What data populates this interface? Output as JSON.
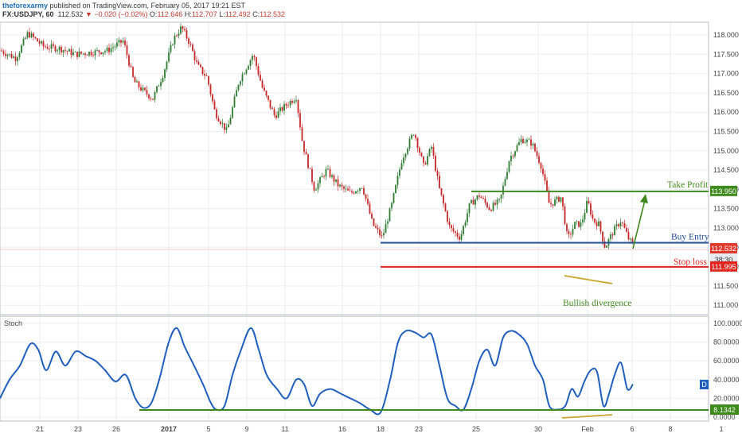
{
  "header": {
    "author": "theforexarmy",
    "published": "published on TradingView.com, February 05, 2017 19:21 EST",
    "symbol": "FX:USDJPY, 60",
    "last": "112.532",
    "change": "▼ −0.020 (−0.02%)",
    "ohlc": {
      "o_label": "O:",
      "o": "112.646",
      "h_label": "H:",
      "h": "112.707",
      "l_label": "L:",
      "l": "112.492",
      "c_label": "C:",
      "c": "112.532"
    }
  },
  "chart_data": [
    {
      "type": "candlestick",
      "symbol": "USDJPY",
      "interval": "60",
      "ylim": [
        110.8,
        118.3
      ],
      "y_ticks": [
        "118.000",
        "117.500",
        "117.000",
        "116.500",
        "116.000",
        "115.500",
        "115.000",
        "114.500",
        "114.000",
        "113.500",
        "113.000",
        "112.500",
        "112.000",
        "111.500",
        "111.000"
      ],
      "x_ticks": [
        "21",
        "23",
        "26",
        "2017",
        "5",
        "9",
        "11",
        "16",
        "18",
        "23",
        "25",
        "30",
        "Feb",
        "6",
        "8",
        "1"
      ],
      "price_path": [
        [
          0,
          117.6
        ],
        [
          20,
          117.4
        ],
        [
          35,
          118.05
        ],
        [
          55,
          117.7
        ],
        [
          75,
          117.65
        ],
        [
          95,
          117.5
        ],
        [
          115,
          117.55
        ],
        [
          135,
          117.6
        ],
        [
          155,
          117.85
        ],
        [
          168,
          116.8
        ],
        [
          180,
          116.55
        ],
        [
          192,
          116.35
        ],
        [
          205,
          117.0
        ],
        [
          218,
          117.9
        ],
        [
          228,
          118.2
        ],
        [
          238,
          117.8
        ],
        [
          248,
          117.2
        ],
        [
          260,
          116.9
        ],
        [
          270,
          116.0
        ],
        [
          285,
          115.5
        ],
        [
          300,
          116.8
        ],
        [
          318,
          117.5
        ],
        [
          330,
          116.6
        ],
        [
          345,
          115.9
        ],
        [
          360,
          116.2
        ],
        [
          372,
          116.4
        ],
        [
          380,
          115.2
        ],
        [
          395,
          114.0
        ],
        [
          410,
          114.5
        ],
        [
          425,
          114.1
        ],
        [
          440,
          113.9
        ],
        [
          455,
          114.1
        ],
        [
          468,
          113.1
        ],
        [
          480,
          112.75
        ],
        [
          492,
          113.6
        ],
        [
          505,
          114.8
        ],
        [
          520,
          115.5
        ],
        [
          532,
          114.6
        ],
        [
          542,
          115.1
        ],
        [
          552,
          114.0
        ],
        [
          565,
          113.0
        ],
        [
          578,
          112.75
        ],
        [
          590,
          113.6
        ],
        [
          602,
          113.85
        ],
        [
          615,
          113.5
        ],
        [
          628,
          113.7
        ],
        [
          640,
          114.8
        ],
        [
          655,
          115.3
        ],
        [
          668,
          115.2
        ],
        [
          680,
          114.6
        ],
        [
          690,
          113.6
        ],
        [
          705,
          113.8
        ],
        [
          713,
          112.7
        ],
        [
          722,
          113.1
        ],
        [
          730,
          113.1
        ],
        [
          738,
          113.7
        ],
        [
          745,
          113.2
        ],
        [
          752,
          113.1
        ],
        [
          760,
          112.5
        ],
        [
          770,
          112.9
        ],
        [
          780,
          113.2
        ],
        [
          790,
          112.7
        ],
        [
          796,
          112.56
        ]
      ],
      "series": [
        {
          "name": "Stoch",
          "values": [
            [
              0,
              20
            ],
            [
              12,
              40
            ],
            [
              25,
              55
            ],
            [
              38,
              78
            ],
            [
              48,
              72
            ],
            [
              58,
              50
            ],
            [
              70,
              70
            ],
            [
              82,
              55
            ],
            [
              95,
              70
            ],
            [
              108,
              65
            ],
            [
              120,
              60
            ],
            [
              132,
              50
            ],
            [
              145,
              38
            ],
            [
              158,
              45
            ],
            [
              170,
              20
            ],
            [
              180,
              10
            ],
            [
              190,
              15
            ],
            [
              200,
              40
            ],
            [
              212,
              80
            ],
            [
              222,
              95
            ],
            [
              232,
              75
            ],
            [
              242,
              58
            ],
            [
              255,
              35
            ],
            [
              265,
              15
            ],
            [
              272,
              8
            ],
            [
              282,
              12
            ],
            [
              292,
              45
            ],
            [
              302,
              70
            ],
            [
              315,
              95
            ],
            [
              325,
              72
            ],
            [
              335,
              45
            ],
            [
              348,
              30
            ],
            [
              360,
              20
            ],
            [
              372,
              40
            ],
            [
              382,
              35
            ],
            [
              392,
              12
            ],
            [
              402,
              25
            ],
            [
              415,
              30
            ],
            [
              428,
              25
            ],
            [
              440,
              20
            ],
            [
              452,
              15
            ],
            [
              465,
              8
            ],
            [
              478,
              5
            ],
            [
              490,
              40
            ],
            [
              500,
              80
            ],
            [
              510,
              92
            ],
            [
              522,
              90
            ],
            [
              532,
              85
            ],
            [
              542,
              88
            ],
            [
              552,
              55
            ],
            [
              562,
              20
            ],
            [
              572,
              12
            ],
            [
              582,
              8
            ],
            [
              592,
              30
            ],
            [
              602,
              60
            ],
            [
              612,
              72
            ],
            [
              622,
              55
            ],
            [
              632,
              85
            ],
            [
              642,
              92
            ],
            [
              652,
              88
            ],
            [
              662,
              78
            ],
            [
              672,
              55
            ],
            [
              682,
              40
            ],
            [
              690,
              12
            ],
            [
              700,
              8
            ],
            [
              710,
              12
            ],
            [
              718,
              30
            ],
            [
              726,
              22
            ],
            [
              734,
              38
            ],
            [
              742,
              50
            ],
            [
              750,
              48
            ],
            [
              758,
              12
            ],
            [
              765,
              25
            ],
            [
              772,
              45
            ],
            [
              780,
              58
            ],
            [
              788,
              30
            ],
            [
              795,
              35
            ]
          ]
        }
      ],
      "stoch_ylim": [
        0,
        100
      ],
      "stoch_ticks": [
        "100.0000",
        "80.0000",
        "60.0000",
        "40.0000",
        "20.0000",
        "0.0000"
      ],
      "stoch_label": "Stoch",
      "levels": {
        "take_profit": {
          "label": "Take Profit",
          "price_label": "113.950",
          "value": 113.95,
          "color": "#3f8a1c",
          "x_start": 592
        },
        "buy_entry": {
          "label": "Buy Entry",
          "value": 112.62,
          "color": "#1f4e99",
          "x_start": 478
        },
        "stop_loss": {
          "label": "Stop loss",
          "price_label": "111.995",
          "value": 111.995,
          "color": "#e0251f",
          "x_start": 478
        }
      },
      "price_badges": {
        "last": "112.532",
        "countdown": "38:30",
        "stoch_value": "8.1342",
        "stoch_pane_label": "D"
      },
      "annotations": {
        "divergence": "Bullish divergence"
      },
      "colors": {
        "up": "#2e7d32",
        "down": "#c62828",
        "stoch": "#1f5fbf",
        "support": "#3f8a1c",
        "divergence": "#c9a227",
        "grid": "#eceef2",
        "axis": "#b8bcc6"
      }
    }
  ]
}
